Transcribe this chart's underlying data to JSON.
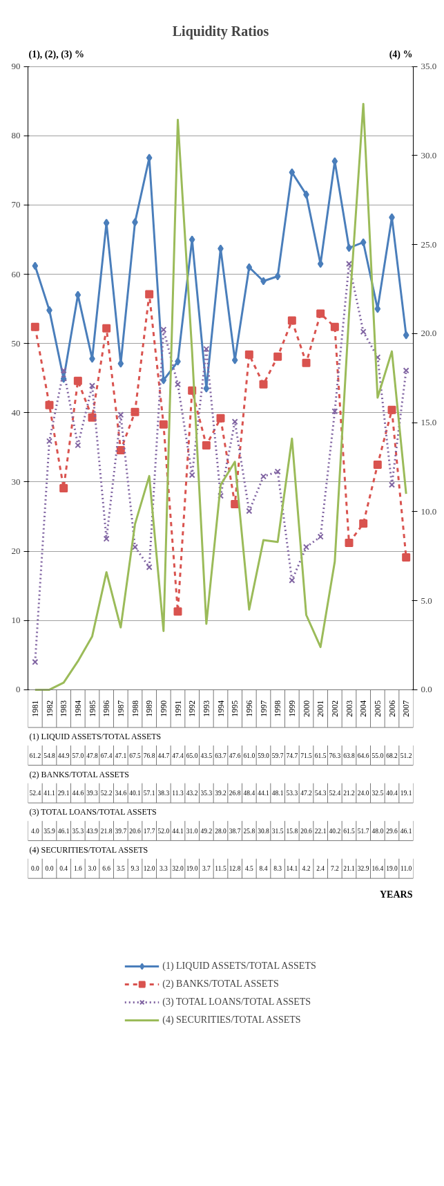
{
  "chart_data": {
    "type": "line",
    "title": "Liquidity Ratios",
    "ylabel": "(1), (2), (3) %",
    "y2label": "(4) %",
    "annotations": [
      "YEARS"
    ],
    "categories": [
      "1981",
      "1982",
      "1983",
      "1984",
      "1985",
      "1986",
      "1987",
      "1988",
      "1989",
      "1990",
      "1991",
      "1992",
      "1993",
      "1994",
      "1995",
      "1996",
      "1997",
      "1998",
      "1999",
      "2000",
      "2001",
      "2002",
      "2003",
      "2004",
      "2005",
      "2006",
      "2007"
    ],
    "ylim": [
      0,
      90
    ],
    "yticks": [
      0,
      10,
      20,
      30,
      40,
      50,
      60,
      70,
      80,
      90
    ],
    "y2lim": [
      0,
      35
    ],
    "y2ticks": [
      {
        "value": 0,
        "label": "0.0"
      },
      {
        "value": 5,
        "label": "5.0"
      },
      {
        "value": 10,
        "label": "10.0"
      },
      {
        "value": 15,
        "label": "15.0"
      },
      {
        "value": 20,
        "label": "20.0"
      },
      {
        "value": 25,
        "label": "25.0"
      },
      {
        "value": 30,
        "label": "30.0"
      },
      {
        "value": 35,
        "label": "35.0"
      }
    ],
    "grid": "y",
    "legend": "bottom",
    "series": [
      {
        "name": "(1) LIQUID ASSETS/TOTAL ASSETS",
        "color": "#4a7ebb",
        "marker": "diamond",
        "line_style": "solid",
        "values": [
          61.2,
          54.8,
          44.9,
          57.0,
          47.8,
          67.4,
          47.1,
          67.5,
          76.8,
          44.7,
          47.4,
          65.0,
          43.5,
          63.7,
          47.6,
          61.0,
          59.0,
          59.7,
          74.7,
          71.5,
          61.5,
          76.3,
          63.8,
          64.6,
          55.0,
          68.2,
          51.2
        ],
        "value_labels": [
          "61.2",
          "54.8",
          "44.9",
          "57.0",
          "47.8",
          "67.4",
          "47.1",
          "67.5",
          "76.8",
          "44.7",
          "47.4",
          "65.0",
          "43.5",
          "63.7",
          "47.6",
          "61.0",
          "59.0",
          "59.7",
          "74.7",
          "71.5",
          "61.5",
          "76.3",
          "63.8",
          "64.6",
          "55.0",
          "68.2",
          "51.2"
        ]
      },
      {
        "name": "(2) BANKS/TOTAL ASSETS",
        "color": "#d9534f",
        "marker": "square",
        "line_style": "dashed",
        "values": [
          52.4,
          41.1,
          29.1,
          44.6,
          39.3,
          52.2,
          34.6,
          40.1,
          57.1,
          38.3,
          11.3,
          43.2,
          35.3,
          39.2,
          26.8,
          48.4,
          44.1,
          48.1,
          53.3,
          47.2,
          54.3,
          52.4,
          21.2,
          24.0,
          32.5,
          40.4,
          19.1
        ],
        "value_labels": [
          "52.4",
          "41.1",
          "29.1",
          "44.6",
          "39.3",
          "52.2",
          "34.6",
          "40.1",
          "57.1",
          "38.3",
          "11.3",
          "43.2",
          "35.3",
          "39.2",
          "26.8",
          "48.4",
          "44.1",
          "48.1",
          "53.3",
          "47.2",
          "54.3",
          "52.4",
          "21.2",
          "24.0",
          "32.5",
          "40.4",
          "19.1"
        ]
      },
      {
        "name": "(3) TOTAL LOANS/TOTAL ASSETS",
        "color": "#8064a2",
        "marker": "cross",
        "line_style": "dotted",
        "values": [
          4.0,
          35.9,
          46.1,
          35.3,
          43.9,
          21.8,
          39.7,
          20.6,
          17.7,
          52.0,
          44.1,
          31.0,
          49.2,
          28.0,
          38.7,
          25.8,
          30.8,
          31.5,
          15.8,
          20.6,
          22.1,
          40.2,
          61.5,
          51.7,
          48.0,
          29.6,
          46.1
        ],
        "value_labels": [
          "4.0",
          "35.9",
          "46.1",
          "35.3",
          "43.9",
          "21.8",
          "39.7",
          "20.6",
          "17.7",
          "52.0",
          "44.1",
          "31.0",
          "49.2",
          "28.0",
          "38.7",
          "25.8",
          "30.8",
          "31.5",
          "15.8",
          "20.6",
          "22.1",
          "40.2",
          "61.5",
          "51.7",
          "48.0",
          "29.6",
          "46.1"
        ]
      },
      {
        "name": "(4) SECURITIES/TOTAL ASSETS",
        "color": "#9bbb59",
        "marker": "none",
        "line_style": "solid",
        "axis": "y2",
        "values": [
          0.0,
          0.0,
          0.4,
          1.6,
          3.0,
          6.6,
          3.5,
          9.3,
          12.0,
          3.3,
          32.0,
          19.0,
          3.7,
          11.5,
          12.8,
          4.5,
          8.4,
          8.3,
          14.1,
          4.2,
          2.4,
          7.2,
          21.1,
          32.9,
          16.4,
          19.0,
          11.0
        ],
        "value_labels": [
          "0.0",
          "0.0",
          "0.4",
          "1.6",
          "3.0",
          "6.6",
          "3.5",
          "9.3",
          "12.0",
          "3.3",
          "32.0",
          "19.0",
          "3.7",
          "11.5",
          "12.8",
          "4.5",
          "8.4",
          "8.3",
          "14.1",
          "4.2",
          "2.4",
          "7.2",
          "21.1",
          "32.9",
          "16.4",
          "19.0",
          "11.0"
        ]
      }
    ]
  }
}
